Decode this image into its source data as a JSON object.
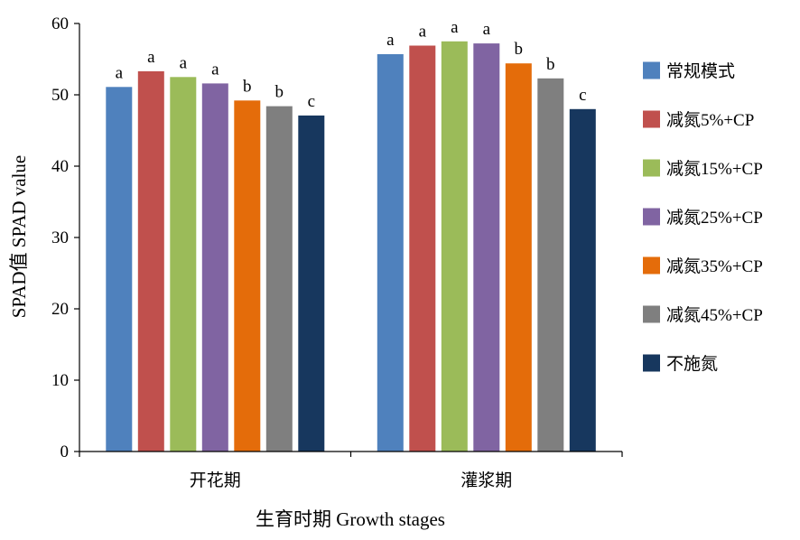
{
  "chart_data": {
    "type": "bar",
    "title": "",
    "xlabel": "生育时期 Growth stages",
    "ylabel": "SPAD值 SPAD value",
    "ylim": [
      0,
      60
    ],
    "yticks": [
      0,
      10,
      20,
      30,
      40,
      50,
      60
    ],
    "grid": false,
    "legend_position": "right",
    "categories": [
      "开花期",
      "灌浆期"
    ],
    "series": [
      {
        "name": "常规模式",
        "color": "#4f81bd",
        "values": [
          51.1,
          55.7
        ],
        "labels": [
          "a",
          "a"
        ]
      },
      {
        "name": "减氮5%+CP",
        "color": "#c0504d",
        "values": [
          53.3,
          56.9
        ],
        "labels": [
          "a",
          "a"
        ]
      },
      {
        "name": "减氮15%+CP",
        "color": "#9bbb59",
        "values": [
          52.5,
          57.5
        ],
        "labels": [
          "a",
          "a"
        ]
      },
      {
        "name": "减氮25%+CP",
        "color": "#8064a2",
        "values": [
          51.6,
          57.2
        ],
        "labels": [
          "a",
          "a"
        ]
      },
      {
        "name": "减氮35%+CP",
        "color": "#e46c0a",
        "values": [
          49.2,
          54.4
        ],
        "labels": [
          "b",
          "b"
        ]
      },
      {
        "name": "减氮45%+CP",
        "color": "#7f7f7f",
        "values": [
          48.4,
          52.3
        ],
        "labels": [
          "b",
          "b"
        ]
      },
      {
        "name": "不施氮",
        "color": "#17375e",
        "values": [
          47.1,
          48.0
        ],
        "labels": [
          "c",
          "c"
        ]
      }
    ]
  }
}
